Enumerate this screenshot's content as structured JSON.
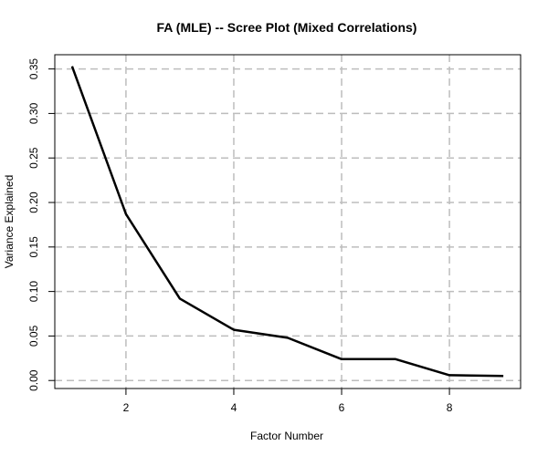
{
  "chart_data": {
    "type": "line",
    "title": "FA (MLE) -- Scree Plot (Mixed Correlations)",
    "xlabel": "Factor Number",
    "ylabel": "Variance Explained",
    "x": [
      1,
      2,
      3,
      4,
      5,
      6,
      7,
      8,
      9
    ],
    "series": [
      {
        "values": [
          0.353,
          0.187,
          0.092,
          0.057,
          0.048,
          0.024,
          0.024,
          0.006,
          0.005
        ]
      }
    ],
    "xlim": [
      0.68,
      9.32
    ],
    "ylim": [
      -0.009,
      0.366
    ],
    "xticks": [
      2,
      4,
      6,
      8
    ],
    "xtick_labels": [
      "2",
      "4",
      "6",
      "8"
    ],
    "yticks": [
      0.0,
      0.05,
      0.1,
      0.15,
      0.2,
      0.25,
      0.3,
      0.35
    ],
    "ytick_labels": [
      "0.00",
      "0.05",
      "0.10",
      "0.15",
      "0.20",
      "0.25",
      "0.30",
      "0.35"
    ],
    "grid": true,
    "line_color": "#000000",
    "grid_color": "#bdbdbd"
  }
}
